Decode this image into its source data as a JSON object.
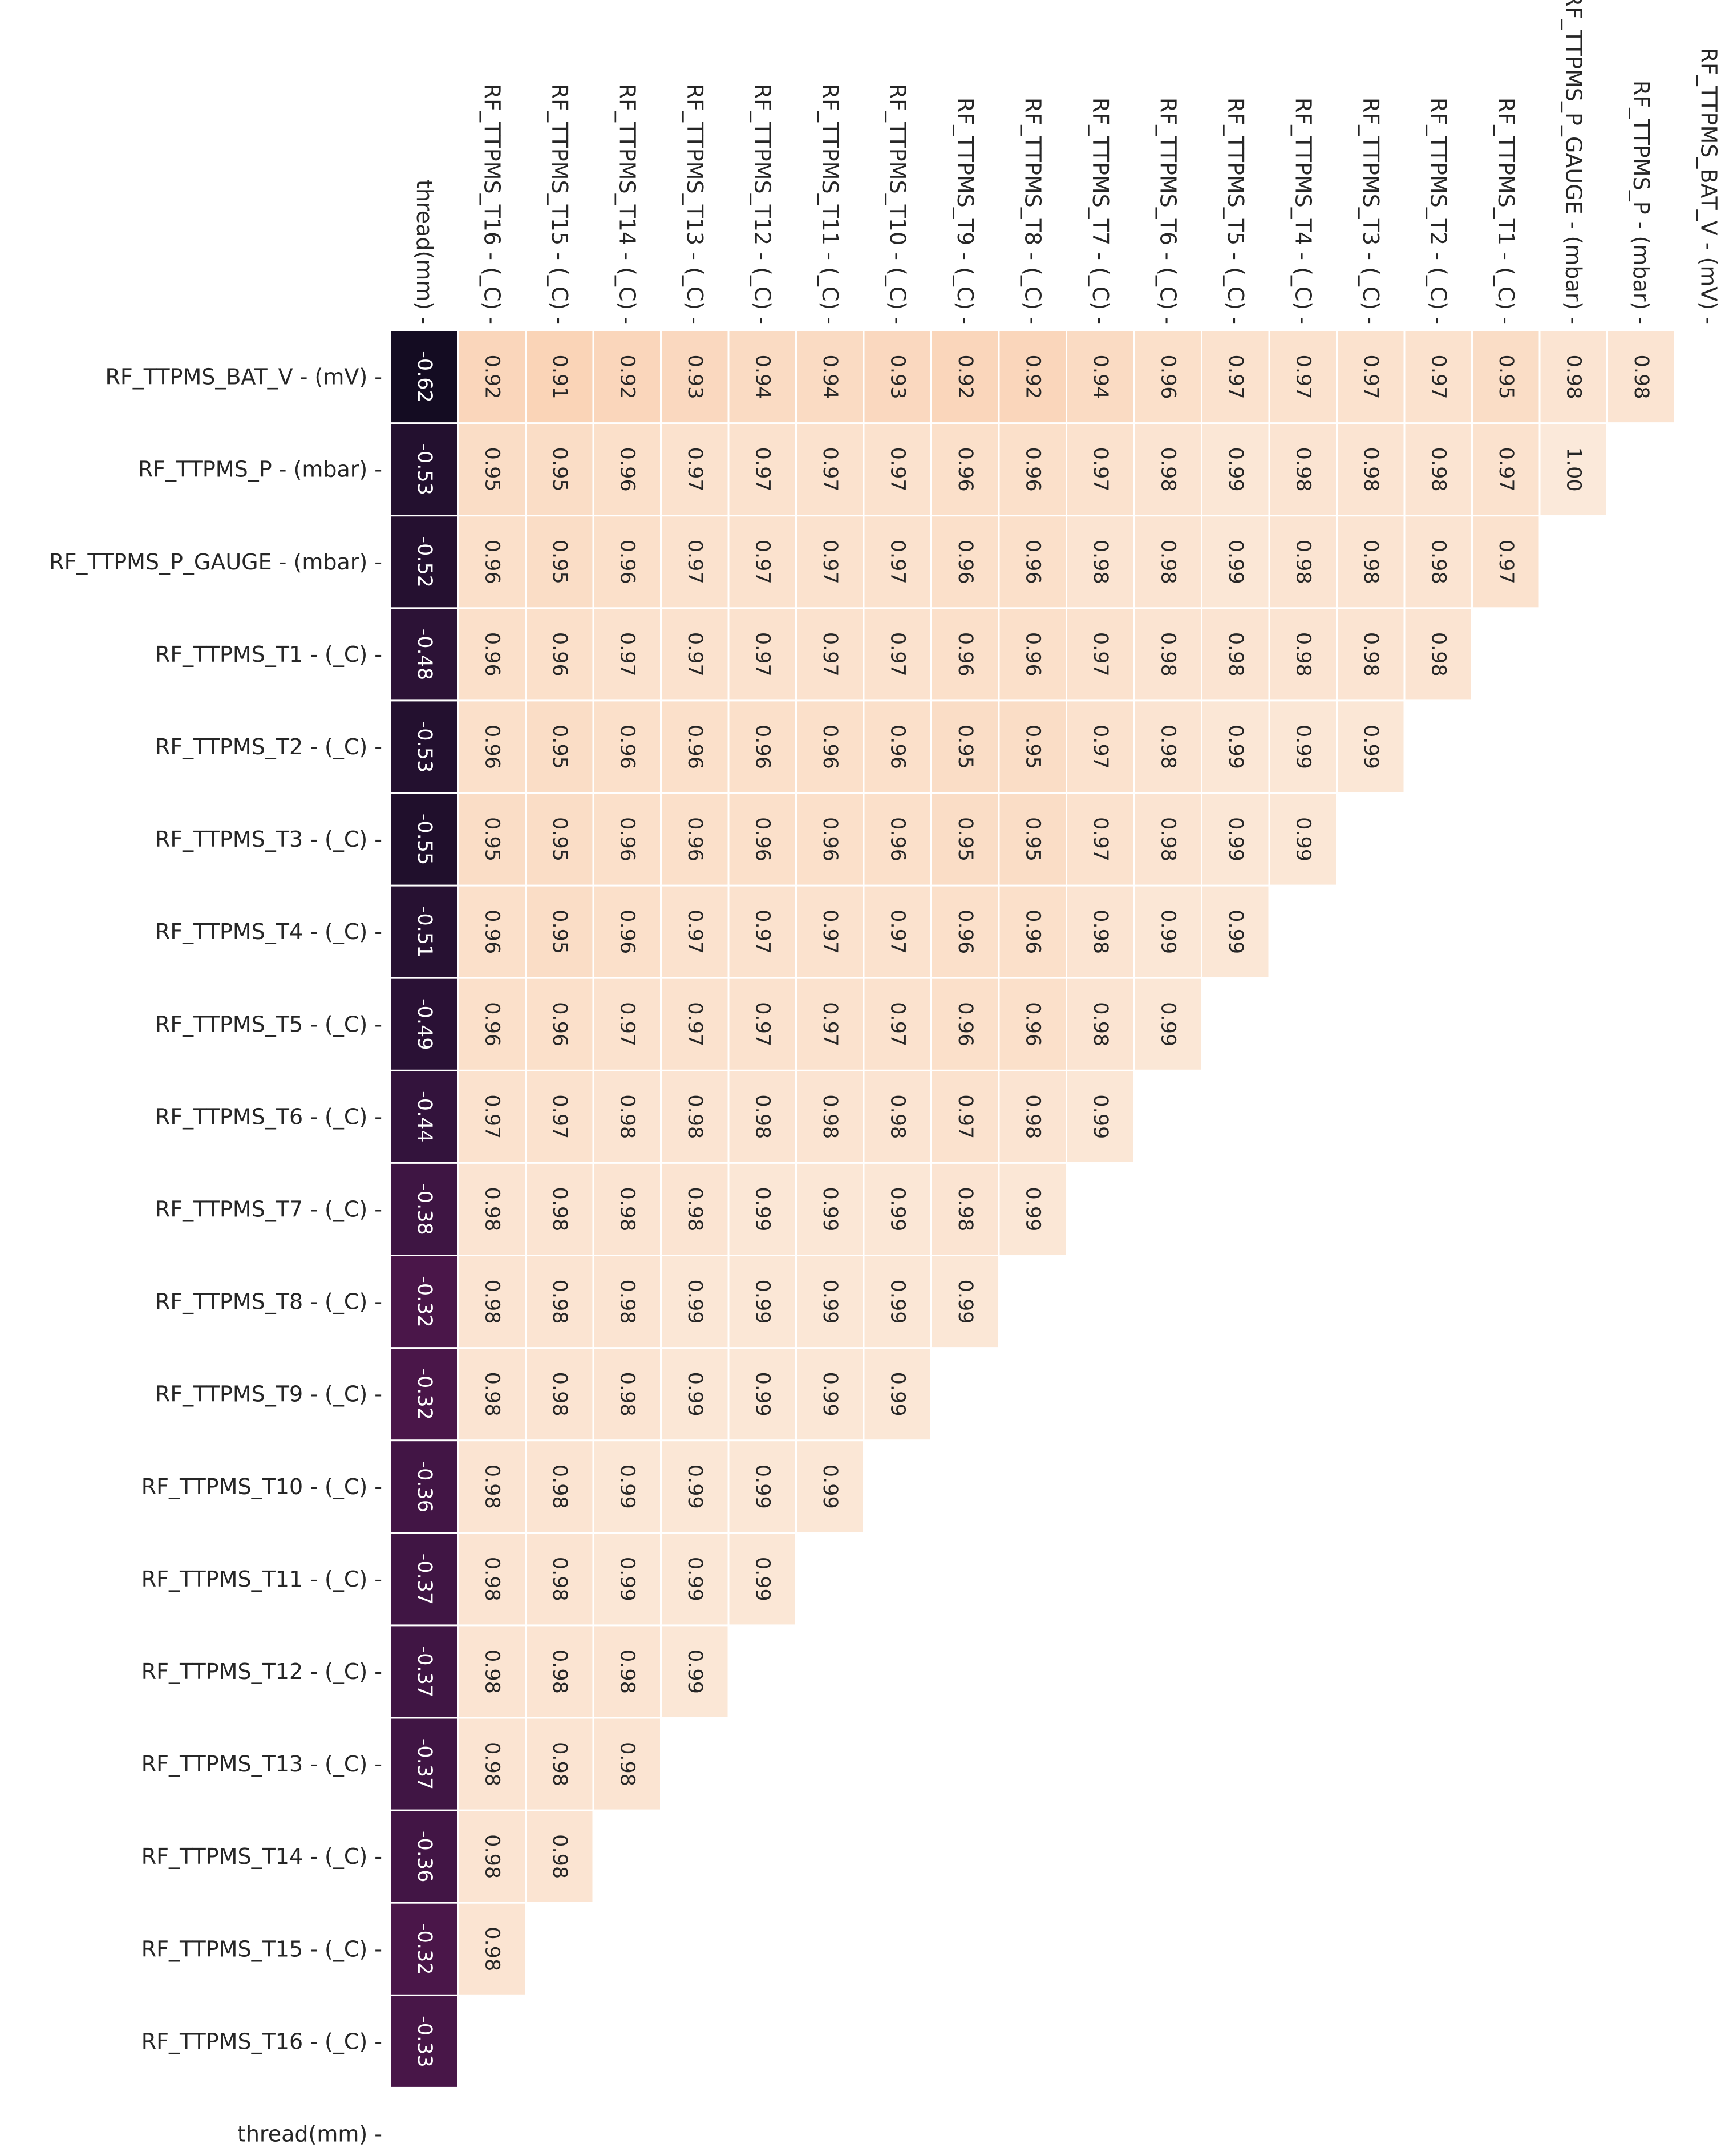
{
  "chart_data": {
    "type": "heatmap",
    "title": "",
    "rows": [
      "RF_TTPMS_BAT_V -  (mV)",
      "RF_TTPMS_P -  (mbar)",
      "RF_TTPMS_P_GAUGE -  (mbar)",
      "RF_TTPMS_T1 -  (_C)",
      "RF_TTPMS_T2 -  (_C)",
      "RF_TTPMS_T3 -  (_C)",
      "RF_TTPMS_T4 -  (_C)",
      "RF_TTPMS_T5 -  (_C)",
      "RF_TTPMS_T6 -  (_C)",
      "RF_TTPMS_T7 -  (_C)",
      "RF_TTPMS_T8 -  (_C)",
      "RF_TTPMS_T9 -  (_C)",
      "RF_TTPMS_T10 -  (_C)",
      "RF_TTPMS_T11 -  (_C)",
      "RF_TTPMS_T12 -  (_C)",
      "RF_TTPMS_T13 -  (_C)",
      "RF_TTPMS_T14 -  (_C)",
      "RF_TTPMS_T15 -  (_C)",
      "RF_TTPMS_T16 -  (_C)",
      "thread(mm)"
    ],
    "columns": [
      "thread(mm)",
      "RF_TTPMS_T16 -  (_C)",
      "RF_TTPMS_T15 -  (_C)",
      "RF_TTPMS_T14 -  (_C)",
      "RF_TTPMS_T13 -  (_C)",
      "RF_TTPMS_T12 -  (_C)",
      "RF_TTPMS_T11 -  (_C)",
      "RF_TTPMS_T10 -  (_C)",
      "RF_TTPMS_T9 -  (_C)",
      "RF_TTPMS_T8 -  (_C)",
      "RF_TTPMS_T7 -  (_C)",
      "RF_TTPMS_T6 -  (_C)",
      "RF_TTPMS_T5 -  (_C)",
      "RF_TTPMS_T4 -  (_C)",
      "RF_TTPMS_T3 -  (_C)",
      "RF_TTPMS_T2 -  (_C)",
      "RF_TTPMS_T1 -  (_C)",
      "RF_TTPMS_P_GAUGE -  (mbar)",
      "RF_TTPMS_P -  (mbar)",
      "RF_TTPMS_BAT_V -  (mV)"
    ],
    "values": [
      [
        -0.62,
        0.92,
        0.91,
        0.92,
        0.93,
        0.94,
        0.94,
        0.93,
        0.92,
        0.92,
        0.94,
        0.96,
        0.97,
        0.97,
        0.97,
        0.97,
        0.95,
        0.98,
        0.98
      ],
      [
        -0.53,
        0.95,
        0.95,
        0.96,
        0.97,
        0.97,
        0.97,
        0.97,
        0.96,
        0.96,
        0.97,
        0.98,
        0.99,
        0.98,
        0.98,
        0.98,
        0.97,
        1.0
      ],
      [
        -0.52,
        0.96,
        0.95,
        0.96,
        0.97,
        0.97,
        0.97,
        0.97,
        0.96,
        0.96,
        0.98,
        0.98,
        0.99,
        0.98,
        0.98,
        0.98,
        0.97
      ],
      [
        -0.48,
        0.96,
        0.96,
        0.97,
        0.97,
        0.97,
        0.97,
        0.97,
        0.96,
        0.96,
        0.97,
        0.98,
        0.98,
        0.98,
        0.98,
        0.98
      ],
      [
        -0.53,
        0.96,
        0.95,
        0.96,
        0.96,
        0.96,
        0.96,
        0.96,
        0.95,
        0.95,
        0.97,
        0.98,
        0.99,
        0.99,
        0.99
      ],
      [
        -0.55,
        0.95,
        0.95,
        0.96,
        0.96,
        0.96,
        0.96,
        0.96,
        0.95,
        0.95,
        0.97,
        0.98,
        0.99,
        0.99
      ],
      [
        -0.51,
        0.96,
        0.95,
        0.96,
        0.97,
        0.97,
        0.97,
        0.97,
        0.96,
        0.96,
        0.98,
        0.99,
        0.99
      ],
      [
        -0.49,
        0.96,
        0.96,
        0.97,
        0.97,
        0.97,
        0.97,
        0.97,
        0.96,
        0.96,
        0.98,
        0.99
      ],
      [
        -0.44,
        0.97,
        0.97,
        0.98,
        0.98,
        0.98,
        0.98,
        0.98,
        0.97,
        0.98,
        0.99
      ],
      [
        -0.38,
        0.98,
        0.98,
        0.98,
        0.98,
        0.99,
        0.99,
        0.99,
        0.98,
        0.99
      ],
      [
        -0.32,
        0.98,
        0.98,
        0.98,
        0.99,
        0.99,
        0.99,
        0.99,
        0.99
      ],
      [
        -0.32,
        0.98,
        0.98,
        0.98,
        0.99,
        0.99,
        0.99,
        0.99
      ],
      [
        -0.36,
        0.98,
        0.98,
        0.99,
        0.99,
        0.99,
        0.99
      ],
      [
        -0.37,
        0.98,
        0.98,
        0.99,
        0.99,
        0.99
      ],
      [
        -0.37,
        0.98,
        0.98,
        0.98,
        0.99
      ],
      [
        -0.37,
        0.98,
        0.98,
        0.98
      ],
      [
        -0.36,
        0.98,
        0.98
      ],
      [
        -0.32,
        0.98
      ],
      [
        -0.33
      ],
      []
    ],
    "vmin": -0.62,
    "vmax": 1.0,
    "colormap": "rocket",
    "annotations_rotated": true
  }
}
